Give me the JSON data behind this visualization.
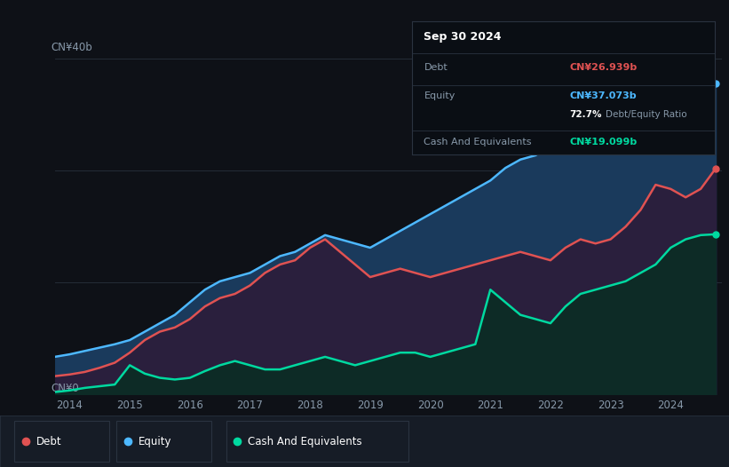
{
  "bg_color": "#0e1117",
  "chart_bg": "#131820",
  "grid_color": "#252d38",
  "title_box_bg": "#0a0e14",
  "title_box_border": "#2a3340",
  "legend_bg": "#161c26",
  "legend_border": "#2a3340",
  "title_box": {
    "date": "Sep 30 2024",
    "debt_label": "Debt",
    "debt_value": "CN¥26.939b",
    "equity_label": "Equity",
    "equity_value": "CN¥37.073b",
    "ratio": "72.7%",
    "ratio_label": "Debt/Equity Ratio",
    "cash_label": "Cash And Equivalents",
    "cash_value": "CN¥19.099b"
  },
  "ylabel_top": "CN¥40b",
  "ylabel_bot": "CN¥0",
  "x_labels": [
    "2014",
    "2015",
    "2016",
    "2017",
    "2018",
    "2019",
    "2020",
    "2021",
    "2022",
    "2023",
    "2024"
  ],
  "legend": [
    {
      "label": "Debt",
      "color": "#e05252"
    },
    {
      "label": "Equity",
      "color": "#4db8ff"
    },
    {
      "label": "Cash And Equivalents",
      "color": "#00d9a0"
    }
  ],
  "equity_line_color": "#4db8ff",
  "debt_line_color": "#e05252",
  "cash_line_color": "#00d9a0",
  "equity_fill_color": "#1a3a5c",
  "debt_fill_color": "#2a1f3d",
  "cash_fill_color": "#0d2b26",
  "years": [
    2013.75,
    2014.0,
    2014.25,
    2014.5,
    2014.75,
    2015.0,
    2015.25,
    2015.5,
    2015.75,
    2016.0,
    2016.25,
    2016.5,
    2016.75,
    2017.0,
    2017.25,
    2017.5,
    2017.75,
    2018.0,
    2018.25,
    2018.5,
    2018.75,
    2019.0,
    2019.25,
    2019.5,
    2019.75,
    2020.0,
    2020.25,
    2020.5,
    2020.75,
    2021.0,
    2021.25,
    2021.5,
    2021.75,
    2022.0,
    2022.25,
    2022.5,
    2022.75,
    2023.0,
    2023.25,
    2023.5,
    2023.75,
    2024.0,
    2024.25,
    2024.5,
    2024.75
  ],
  "equity": [
    4.5,
    4.8,
    5.2,
    5.6,
    6.0,
    6.5,
    7.5,
    8.5,
    9.5,
    11.0,
    12.5,
    13.5,
    14.0,
    14.5,
    15.5,
    16.5,
    17.0,
    18.0,
    19.0,
    18.5,
    18.0,
    17.5,
    18.5,
    19.5,
    20.5,
    21.5,
    22.5,
    23.5,
    24.5,
    25.5,
    27.0,
    28.0,
    28.5,
    29.5,
    30.5,
    30.0,
    30.5,
    31.5,
    32.5,
    33.5,
    34.5,
    35.5,
    37.0,
    38.0,
    37.073
  ],
  "debt": [
    2.2,
    2.4,
    2.7,
    3.2,
    3.8,
    5.0,
    6.5,
    7.5,
    8.0,
    9.0,
    10.5,
    11.5,
    12.0,
    13.0,
    14.5,
    15.5,
    16.0,
    17.5,
    18.5,
    17.0,
    15.5,
    14.0,
    14.5,
    15.0,
    14.5,
    14.0,
    14.5,
    15.0,
    15.5,
    16.0,
    16.5,
    17.0,
    16.5,
    16.0,
    17.5,
    18.5,
    18.0,
    18.5,
    20.0,
    22.0,
    25.0,
    24.5,
    23.5,
    24.5,
    26.939
  ],
  "cash": [
    0.3,
    0.5,
    0.8,
    1.0,
    1.2,
    3.5,
    2.5,
    2.0,
    1.8,
    2.0,
    2.8,
    3.5,
    4.0,
    3.5,
    3.0,
    3.0,
    3.5,
    4.0,
    4.5,
    4.0,
    3.5,
    4.0,
    4.5,
    5.0,
    5.0,
    4.5,
    5.0,
    5.5,
    6.0,
    12.5,
    11.0,
    9.5,
    9.0,
    8.5,
    10.5,
    12.0,
    12.5,
    13.0,
    13.5,
    14.5,
    15.5,
    17.5,
    18.5,
    19.0,
    19.099
  ],
  "ymax": 40.0,
  "xmin": 2013.75,
  "xmax": 2024.85
}
